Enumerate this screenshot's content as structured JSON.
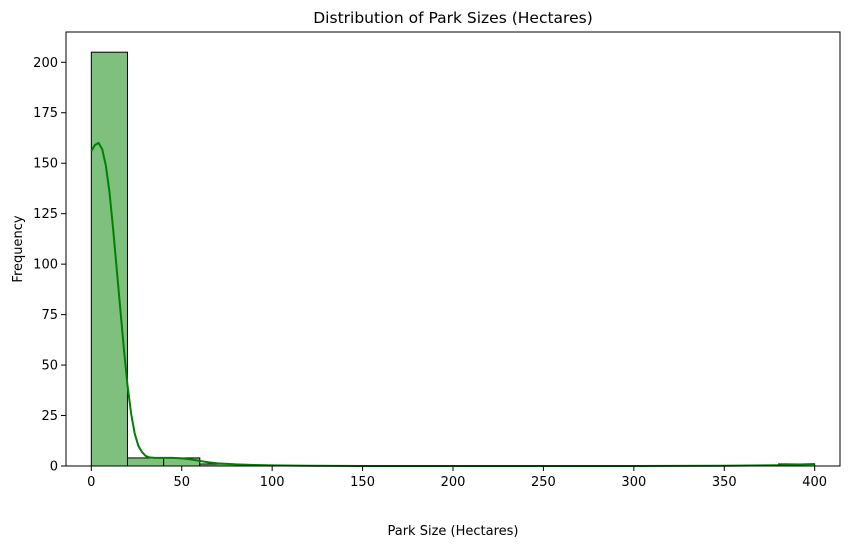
{
  "chart_data": {
    "type": "bar",
    "title": "Distribution of Park Sizes (Hectares)",
    "xlabel": "Park Size (Hectares)",
    "ylabel": "Frequency",
    "xlim": [
      -14,
      414
    ],
    "ylim": [
      0,
      215
    ],
    "xticks": [
      0,
      50,
      100,
      150,
      200,
      250,
      300,
      350,
      400
    ],
    "yticks": [
      0,
      25,
      50,
      75,
      100,
      125,
      150,
      175,
      200
    ],
    "bin_edges": [
      0,
      20,
      40,
      60,
      80,
      100,
      120,
      140,
      160,
      180,
      200,
      220,
      240,
      260,
      280,
      300,
      320,
      340,
      360,
      380,
      400
    ],
    "counts": [
      205,
      4,
      4,
      1,
      0,
      0,
      0,
      0,
      0,
      0,
      0,
      0,
      0,
      0,
      0,
      0,
      0,
      0,
      0,
      1
    ],
    "kde": {
      "x": [
        0,
        2,
        4,
        6,
        8,
        10,
        12,
        14,
        16,
        18,
        20,
        22,
        24,
        26,
        28,
        30,
        32,
        35,
        40,
        45,
        50,
        55,
        60,
        65,
        70,
        80,
        90,
        100,
        120,
        150,
        200,
        250,
        300,
        350,
        380,
        390,
        400
      ],
      "y": [
        156,
        159,
        160,
        157,
        149,
        136,
        118,
        98,
        78,
        58,
        40,
        26,
        16,
        10,
        7,
        5,
        4.3,
        4,
        4,
        4,
        3.8,
        3.3,
        2.5,
        1.8,
        1.3,
        0.8,
        0.5,
        0.3,
        0.1,
        0,
        0,
        0,
        0,
        0.1,
        0.4,
        0.7,
        1
      ]
    },
    "colors": {
      "bar_fill": "#80c07f",
      "bar_edge": "#000000",
      "kde_line": "#008000"
    },
    "grid": false,
    "legend": "none"
  }
}
